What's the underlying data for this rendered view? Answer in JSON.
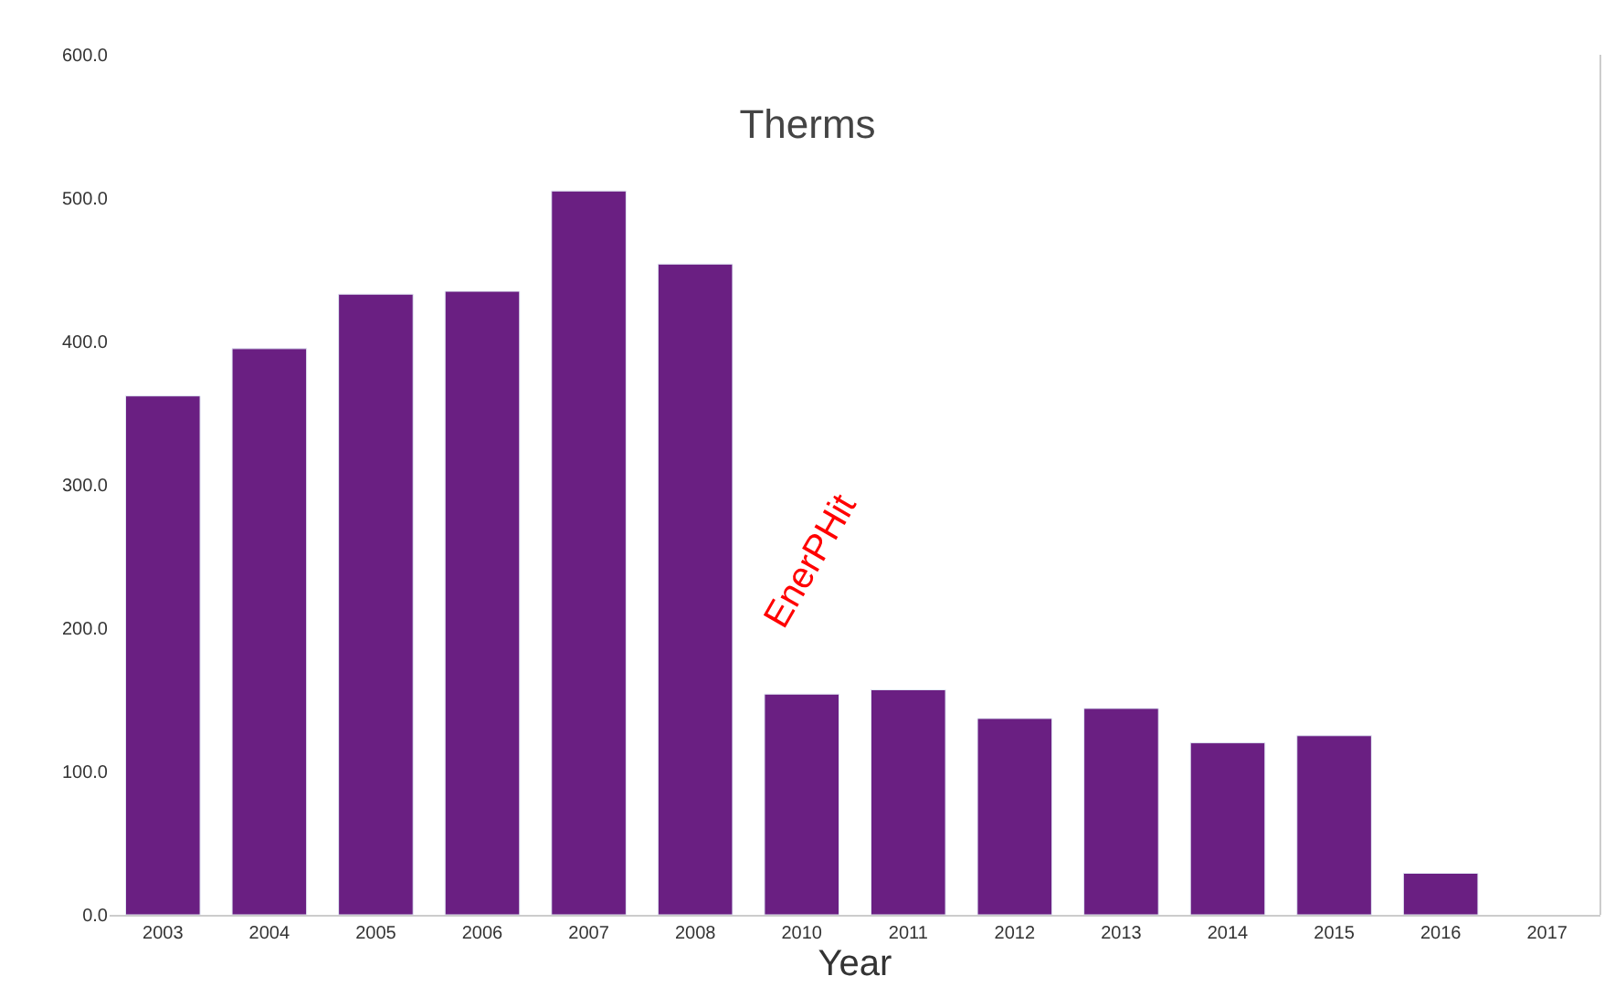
{
  "chart_data": {
    "type": "bar",
    "title": "Therms",
    "xlabel": "Year",
    "categories": [
      "2003",
      "2004",
      "2005",
      "2006",
      "2007",
      "2008",
      "2010",
      "2011",
      "2012",
      "2013",
      "2014",
      "2015",
      "2016",
      "2017"
    ],
    "values": [
      362,
      395,
      433,
      435,
      505,
      454,
      154,
      157,
      137,
      144,
      120,
      125,
      29,
      null
    ],
    "color": "#6a1f82",
    "ylim": [
      0,
      600
    ],
    "yticks": [
      {
        "value": 0,
        "label": "0.0"
      },
      {
        "value": 100,
        "label": "100.0"
      },
      {
        "value": 200,
        "label": "200.0"
      },
      {
        "value": 300,
        "label": "300.0"
      },
      {
        "value": 400,
        "label": "400.0"
      },
      {
        "value": 500,
        "label": "500.0"
      },
      {
        "value": 600,
        "label": "600.0"
      }
    ],
    "annotations": [
      "EnerPHit"
    ]
  }
}
